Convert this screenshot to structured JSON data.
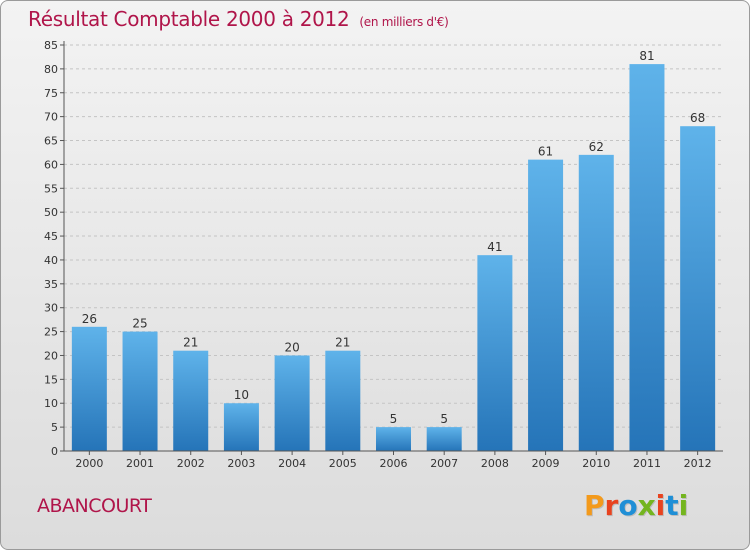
{
  "page": {
    "title": "Résultat Comptable 2000 à 2012",
    "subtitle": "(en milliers d'€)",
    "commune": "ABANCOURT",
    "brand": "Proxiti"
  },
  "colors": {
    "title": "#b0154a",
    "bar_top": "#5fb3ea",
    "bar_bottom": "#2574b8",
    "brand_letters": [
      "#f39a1c",
      "#e8431f",
      "#1f8fd6",
      "#74b51f",
      "#e8431f",
      "#1f8fd6",
      "#74b51f"
    ]
  },
  "chart_data": {
    "type": "bar",
    "categories": [
      "2000",
      "2001",
      "2002",
      "2003",
      "2004",
      "2005",
      "2006",
      "2007",
      "2008",
      "2009",
      "2010",
      "2011",
      "2012"
    ],
    "values": [
      26,
      25,
      21,
      10,
      20,
      21,
      5,
      5,
      41,
      61,
      62,
      81,
      68
    ],
    "title": "Résultat Comptable 2000 à 2012",
    "subtitle": "(en milliers d'€)",
    "xlabel": "",
    "ylabel": "",
    "ylim": [
      0,
      85
    ],
    "yticks": [
      0,
      5,
      10,
      15,
      20,
      25,
      30,
      35,
      40,
      45,
      50,
      55,
      60,
      65,
      70,
      75,
      80,
      85
    ],
    "grid": true,
    "data_labels": true
  }
}
